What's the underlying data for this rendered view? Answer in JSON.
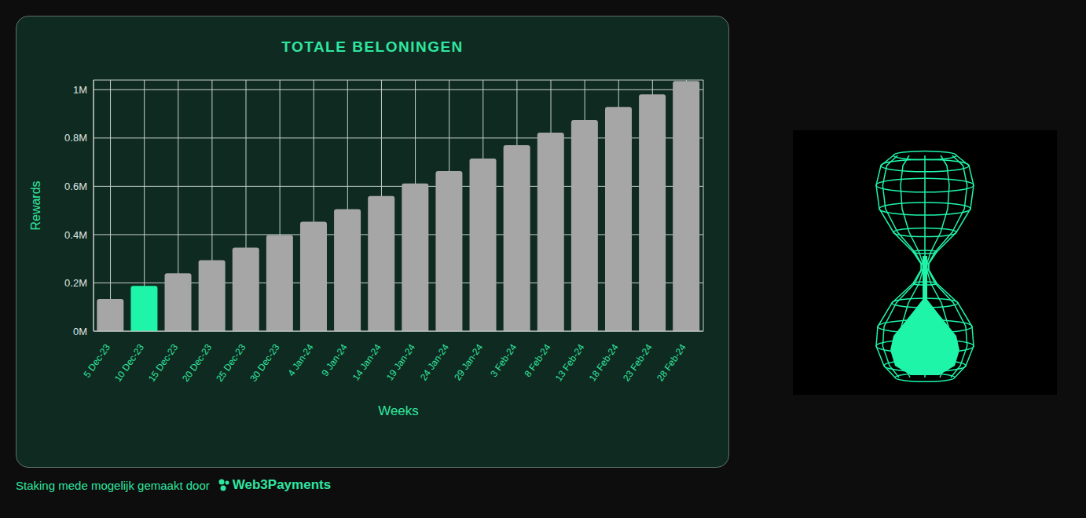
{
  "chart_data": {
    "type": "bar",
    "title": "TOTALE BELONINGEN",
    "x_label": "Weeks",
    "y_label": "Rewards",
    "categories": [
      "5 Dec-23",
      "10 Dec-23",
      "15 Dec-23",
      "20 Dec-23",
      "25 Dec-23",
      "30 Dec-23",
      "4 Jan-24",
      "9 Jan-24",
      "14 Jan-24",
      "19 Jan-24",
      "24 Jan-24",
      "29 Jan-24",
      "3 Feb-24",
      "8 Feb-24",
      "13 Feb-24",
      "18 Feb-24",
      "23 Feb-24",
      "28 Feb-24"
    ],
    "values": [
      133000,
      188000,
      240000,
      294000,
      346000,
      398000,
      453000,
      505000,
      560000,
      612000,
      663000,
      715000,
      770000,
      822000,
      874000,
      929000,
      981000,
      1036000
    ],
    "colors": [
      "#a6a6a6",
      "#1ef5a8",
      "#a6a6a6",
      "#a6a6a6",
      "#a6a6a6",
      "#a6a6a6",
      "#a6a6a6",
      "#a6a6a6",
      "#a6a6a6",
      "#a6a6a6",
      "#a6a6a6",
      "#a6a6a6",
      "#a6a6a6",
      "#a6a6a6",
      "#a6a6a6",
      "#a6a6a6",
      "#a6a6a6",
      "#a6a6a6"
    ],
    "ylim": [
      0,
      1040000
    ],
    "yticks": [
      {
        "value": 0,
        "label": "0M"
      },
      {
        "value": 200000,
        "label": "0.2M"
      },
      {
        "value": 400000,
        "label": "0.4M"
      },
      {
        "value": 600000,
        "label": "0.6M"
      },
      {
        "value": 800000,
        "label": "0.8M"
      },
      {
        "value": 1000000,
        "label": "1M"
      }
    ],
    "grid": true
  },
  "footer": {
    "text": "Staking mede mogelijk gemaakt door",
    "brand": "Web3Payments"
  }
}
